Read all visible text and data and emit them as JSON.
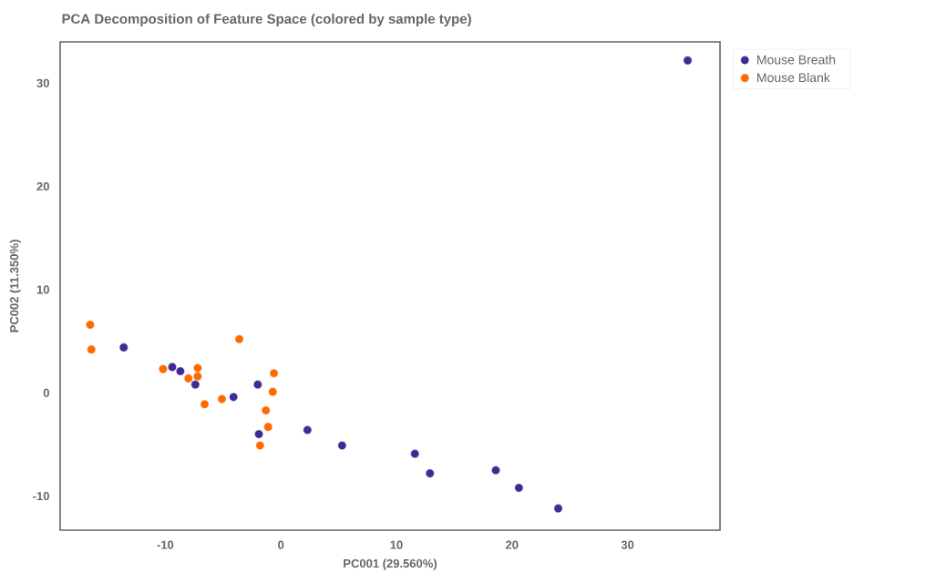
{
  "chart_data": {
    "type": "scatter",
    "title": "PCA Decomposition of Feature Space (colored by sample type)",
    "xlabel": "PC001 (29.560%)",
    "ylabel": "PC002 (11.350%)",
    "xlim": [
      -19.1,
      38
    ],
    "ylim": [
      -13.3,
      34
    ],
    "xticks": [
      -10,
      0,
      10,
      20,
      30
    ],
    "yticks": [
      -10,
      0,
      10,
      20,
      30
    ],
    "grid": false,
    "legend": "top right",
    "series": [
      {
        "name": "Mouse Breath",
        "color": "#3f2a96",
        "x": [
          -13.6,
          -9.4,
          -8.7,
          -7.4,
          -4.1,
          -2.0,
          -1.9,
          2.3,
          5.3,
          11.6,
          12.9,
          18.6,
          20.6,
          24.0,
          35.2
        ],
        "values": [
          4.4,
          2.5,
          2.1,
          0.8,
          -0.4,
          0.8,
          -4.0,
          -3.6,
          -5.1,
          -5.9,
          -7.8,
          -7.5,
          -9.2,
          -11.2,
          32.2
        ]
      },
      {
        "name": "Mouse Blank",
        "color": "#ff6a00",
        "x": [
          -16.5,
          -16.4,
          -10.2,
          -7.2,
          -8.0,
          -7.2,
          -3.6,
          -6.6,
          -5.1,
          -0.6,
          -0.7,
          -1.3,
          -1.1,
          -1.8
        ],
        "values": [
          6.6,
          4.2,
          2.3,
          2.4,
          1.4,
          1.6,
          5.2,
          -1.1,
          -0.6,
          1.9,
          0.1,
          -1.7,
          -3.3,
          -5.1
        ]
      }
    ]
  }
}
